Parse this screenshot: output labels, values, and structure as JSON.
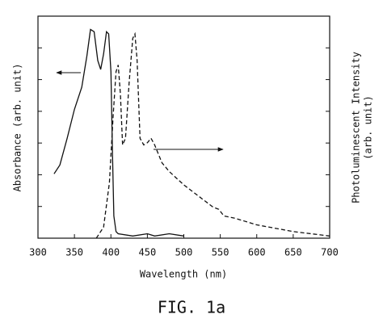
{
  "chart_data": {
    "type": "line",
    "title": "FIG. 1a",
    "x_label": "Wavelength (nm)",
    "y_label": "Absorbance (arb. unit)",
    "y2_label": [
      "Photoluminescent Intensity",
      "(arb. unit)"
    ],
    "xlim": [
      300,
      700
    ],
    "xticks": [
      300,
      350,
      400,
      450,
      500,
      550,
      600,
      650,
      700
    ],
    "ylim": [
      0,
      100
    ],
    "y2lim": [
      0,
      100
    ],
    "series": [
      {
        "name": "Absorbance",
        "color": "#111111",
        "dash": "solid",
        "x": [
          322,
          330,
          340,
          350,
          360,
          367,
          372,
          377,
          382,
          386,
          390,
          394,
          397,
          400,
          402,
          404,
          407,
          410,
          430,
          450,
          460,
          480,
          500
        ],
        "values": [
          29,
          33,
          45,
          58,
          68,
          82,
          94,
          93,
          80,
          76,
          83,
          93,
          92,
          75,
          40,
          10,
          3,
          2,
          1,
          2,
          1,
          2,
          1
        ]
      },
      {
        "name": "Photoluminescent Intensity",
        "color": "#111111",
        "dash": "dashed",
        "axis": "y2",
        "x": [
          380,
          390,
          398,
          403,
          407,
          410,
          413,
          416,
          420,
          425,
          430,
          433,
          436,
          440,
          445,
          450,
          455,
          460,
          465,
          470,
          480,
          500,
          520,
          540,
          548,
          555,
          570,
          580,
          600,
          650,
          700
        ],
        "values": [
          0,
          5,
          25,
          55,
          75,
          78,
          65,
          42,
          45,
          70,
          90,
          92,
          80,
          45,
          42,
          43,
          45,
          42,
          38,
          34,
          30,
          24,
          19,
          14,
          13,
          10,
          9,
          8,
          6,
          3,
          1
        ]
      }
    ]
  }
}
